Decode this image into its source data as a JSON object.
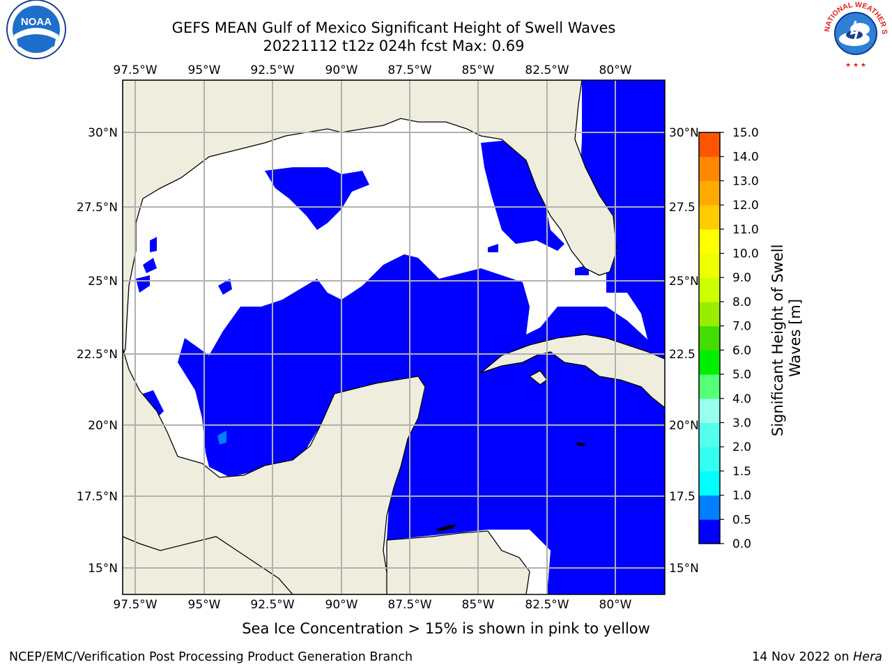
{
  "title": {
    "line1": "GEFS MEAN Gulf of Mexico Significant Height of Swell Waves",
    "line2": "20221112 t12z 024h fcst   Max: 0.69"
  },
  "map": {
    "lon_labels": [
      "97.5°W",
      "95°W",
      "92.5°W",
      "90°W",
      "87.5°W",
      "85°W",
      "82.5°W",
      "80°W"
    ],
    "lat_labels": [
      "30°N",
      "27.5°N",
      "25°N",
      "22.5°N",
      "20°N",
      "17.5°N",
      "15°N"
    ],
    "lat_labels_right": [
      "30°N",
      "27.5",
      "25°N",
      "22.5",
      "20°N",
      "17.5",
      "15°N"
    ],
    "colors": {
      "land": "#efeede",
      "no_data": "#ffffff",
      "swell_0_0.5": "#0000ff",
      "swell_0.5_1.0": "#0080ff",
      "grid": "#b0b0b0"
    }
  },
  "colorbar": {
    "label": "Significant Height of Swell Waves [m]",
    "label_line1": "Significant Height of Swell",
    "label_line2": "Waves [m]",
    "ticks": [
      "15.0",
      "14.0",
      "13.0",
      "12.0",
      "11.0",
      "10.0",
      "9.0",
      "8.0",
      "7.0",
      "6.0",
      "5.0",
      "4.0",
      "3.0",
      "2.0",
      "1.5",
      "1.0",
      "0.5",
      "0.0"
    ],
    "colors_bottom_to_top": [
      "#0000ff",
      "#0080ff",
      "#00ffff",
      "#33ffee",
      "#55ffee",
      "#99ffee",
      "#55ff77",
      "#00ee00",
      "#44dd00",
      "#99ee00",
      "#ccff00",
      "#eeff00",
      "#ffff00",
      "#ffcc00",
      "#ffaa00",
      "#ff8800",
      "#ff5500",
      "#ff2200",
      "#ff0000"
    ]
  },
  "ice_note": "Sea Ice Concentration > 15% is shown in pink to yellow",
  "footer": {
    "left": "NCEP/EMC/Verification Post Processing Product Generation Branch",
    "right_prefix": "14 Nov 2022 on ",
    "right_host": "Hera"
  },
  "logos": {
    "noaa_text": "NOAA",
    "nws_text": "NATIONAL WEATHER SERVICE"
  }
}
